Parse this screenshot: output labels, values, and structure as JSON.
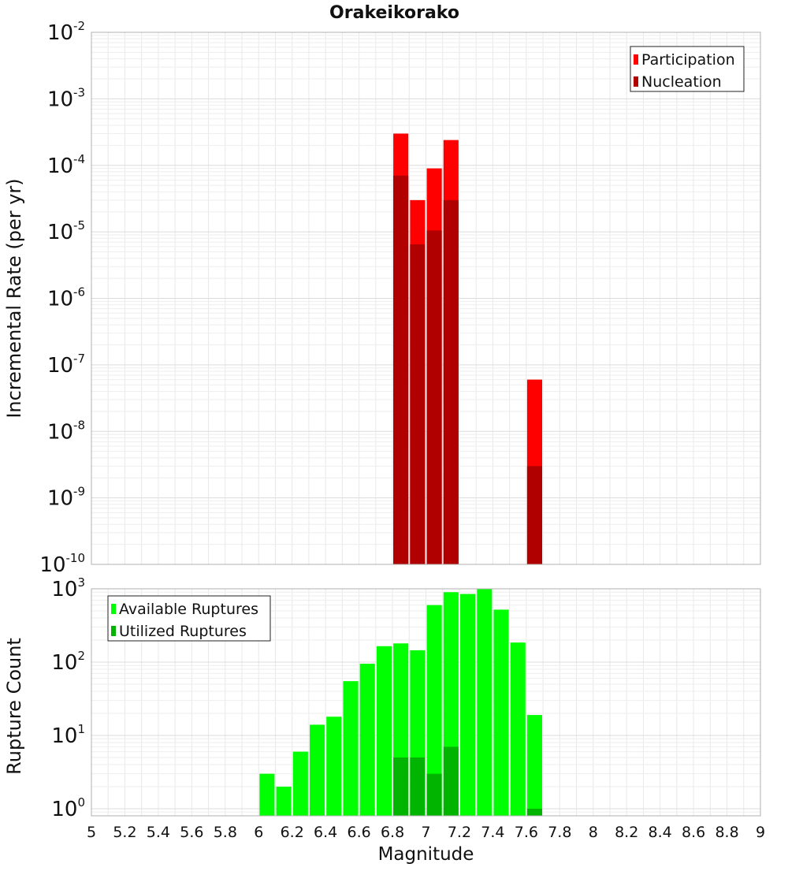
{
  "chart_data": [
    {
      "type": "bar",
      "title": "Orakeikorako",
      "xlabel": "",
      "ylabel": "Incremental Rate (per yr)",
      "y_scale": "log",
      "xlim": [
        5,
        9
      ],
      "ylim": [
        1e-10,
        0.01
      ],
      "grid": true,
      "legend_position": "top-right",
      "x_ticks": [
        "5",
        "5.2",
        "5.4",
        "5.6",
        "5.8",
        "6",
        "6.2",
        "6.4",
        "6.6",
        "6.8",
        "7",
        "7.2",
        "7.4",
        "7.6",
        "7.8",
        "8",
        "8.2",
        "8.4",
        "8.6",
        "8.8",
        "9"
      ],
      "y_ticks": [
        {
          "base": "10",
          "exp": "-10"
        },
        {
          "base": "10",
          "exp": "-9"
        },
        {
          "base": "10",
          "exp": "-8"
        },
        {
          "base": "10",
          "exp": "-7"
        },
        {
          "base": "10",
          "exp": "-6"
        },
        {
          "base": "10",
          "exp": "-5"
        },
        {
          "base": "10",
          "exp": "-4"
        },
        {
          "base": "10",
          "exp": "-3"
        },
        {
          "base": "10",
          "exp": "-2"
        }
      ],
      "series": [
        {
          "name": "Participation",
          "color": "#ff0000",
          "x": [
            6.85,
            6.95,
            7.05,
            7.15,
            7.65
          ],
          "values": [
            0.0003,
            3e-05,
            9e-05,
            0.00024,
            6e-08
          ]
        },
        {
          "name": "Nucleation",
          "color": "#b00000",
          "x": [
            6.85,
            6.95,
            7.05,
            7.15,
            7.65
          ],
          "values": [
            7e-05,
            6.5e-06,
            1.05e-05,
            3e-05,
            3e-09
          ]
        }
      ]
    },
    {
      "type": "bar",
      "title": "",
      "xlabel": "Magnitude",
      "ylabel": "Rupture Count",
      "y_scale": "log",
      "xlim": [
        5,
        9
      ],
      "ylim": [
        0.8,
        1000
      ],
      "grid": true,
      "legend_position": "top-left",
      "x_ticks": [
        "5",
        "5.2",
        "5.4",
        "5.6",
        "5.8",
        "6",
        "6.2",
        "6.4",
        "6.6",
        "6.8",
        "7",
        "7.2",
        "7.4",
        "7.6",
        "7.8",
        "8",
        "8.2",
        "8.4",
        "8.6",
        "8.8",
        "9"
      ],
      "y_ticks": [
        {
          "base": "10",
          "exp": "0"
        },
        {
          "base": "10",
          "exp": "1"
        },
        {
          "base": "10",
          "exp": "2"
        },
        {
          "base": "10",
          "exp": "3"
        }
      ],
      "series": [
        {
          "name": "Available Ruptures",
          "color": "#00ff00",
          "x": [
            6.05,
            6.15,
            6.25,
            6.35,
            6.45,
            6.55,
            6.65,
            6.75,
            6.85,
            6.95,
            7.05,
            7.15,
            7.25,
            7.35,
            7.45,
            7.55,
            7.65
          ],
          "values": [
            3,
            2,
            6,
            14,
            18,
            55,
            95,
            165,
            180,
            145,
            600,
            900,
            850,
            1000,
            520,
            185,
            19
          ]
        },
        {
          "name": "Utilized Ruptures",
          "color": "#00b400",
          "x": [
            6.85,
            6.95,
            7.05,
            7.15,
            7.65
          ],
          "values": [
            5,
            5,
            3,
            7,
            1
          ]
        }
      ]
    }
  ]
}
